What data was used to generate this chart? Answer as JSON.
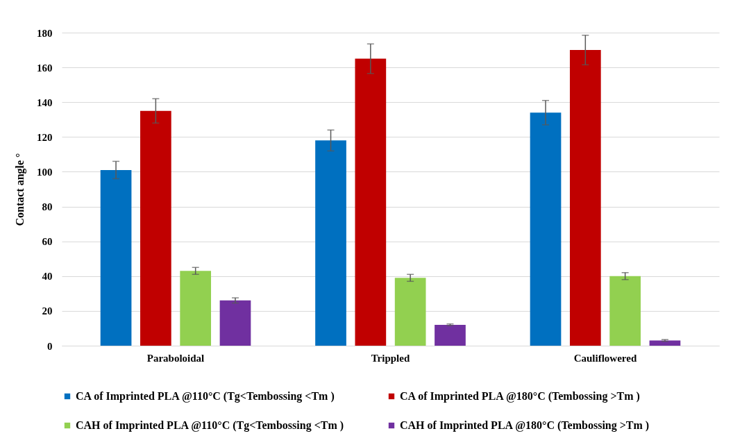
{
  "chart_data": {
    "type": "bar",
    "ylabel": "Contact angle °",
    "categories": [
      "Paraboloidal",
      "Trippled",
      "Cauliflowered"
    ],
    "series": [
      {
        "name": "CA of Imprinted PLA @110°C (Tg<Tembossing <Tm )",
        "color": "#0070c0",
        "values": [
          101,
          118,
          134
        ],
        "errors": [
          5,
          6,
          7
        ]
      },
      {
        "name": "CA of Imprinted PLA @180°C (Tembossing >Tm )",
        "color": "#c00000",
        "values": [
          135,
          165,
          170
        ],
        "errors": [
          7,
          8.5,
          8.5
        ]
      },
      {
        "name": "CAH of Imprinted PLA @110°C (Tg<Tembossing <Tm )",
        "color": "#92d050",
        "values": [
          43,
          39,
          40
        ],
        "errors": [
          2,
          2,
          2
        ]
      },
      {
        "name": "CAH of Imprinted PLA @180°C (Tembossing >Tm )",
        "color": "#7030a0",
        "values": [
          26,
          12,
          3
        ],
        "errors": [
          1.5,
          0.5,
          0.5
        ]
      }
    ],
    "ylim": [
      0,
      180
    ],
    "yticks": [
      0,
      20,
      40,
      60,
      80,
      100,
      120,
      140,
      160,
      180
    ],
    "grid": "y",
    "legend": "bottom"
  }
}
